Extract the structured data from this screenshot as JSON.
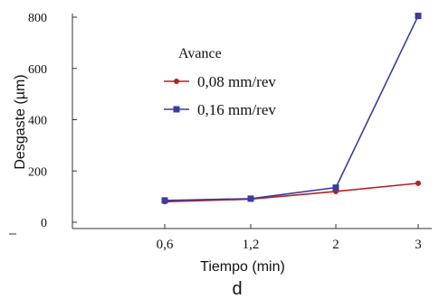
{
  "chart_data": {
    "type": "line",
    "categories": [
      "0,6",
      "1,2",
      "2",
      "3"
    ],
    "series": [
      {
        "name": "0,08 mm/rev",
        "values": [
          80,
          90,
          120,
          152
        ],
        "color": "#b22222",
        "marker": "circle"
      },
      {
        "name": "0,16 mm/rev",
        "values": [
          85,
          92,
          135,
          805
        ],
        "color": "#3b3ba0",
        "marker": "square"
      }
    ],
    "xlabel": "Tiempo (min)",
    "ylabel": "Desgaste (µm)",
    "yticks": [
      0,
      200,
      400,
      600,
      800
    ],
    "ylim": [
      0,
      800
    ],
    "legend_title": "Avance",
    "legend_position": "top-left",
    "caption": "d",
    "grid": false
  }
}
